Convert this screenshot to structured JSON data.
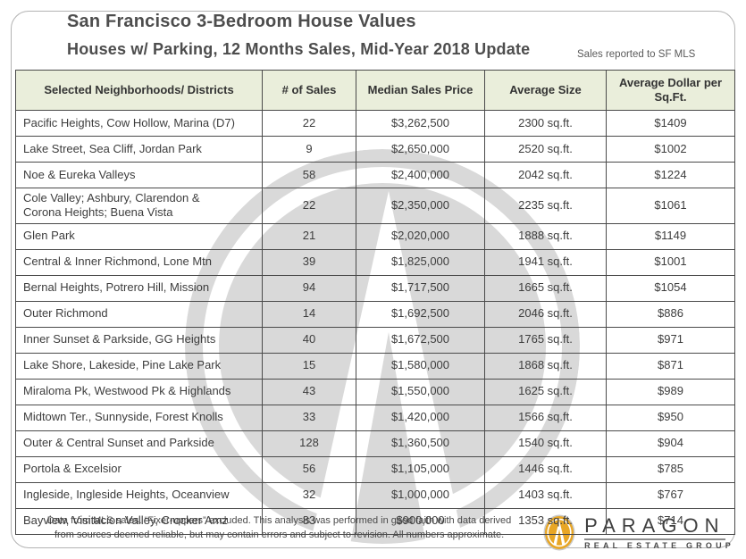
{
  "header": {
    "title": "San Francisco 3-Bedroom House Values",
    "subtitle": "Houses w/ Parking, 12 Months Sales, Mid-Year 2018 Update",
    "note": "Sales reported to SF MLS"
  },
  "chart_data": {
    "type": "table",
    "title": "San Francisco 3-Bedroom House Values",
    "subtitle": "Houses w/ Parking, 12 Months Sales, Mid-Year 2018 Update",
    "columns": [
      "Selected Neighborhoods/ Districts",
      "# of Sales",
      "Median Sales Price",
      "Average Size",
      "Average Dollar per Sq.Ft."
    ],
    "rows": [
      [
        "Pacific Heights, Cow Hollow, Marina (D7)",
        "22",
        "$3,262,500",
        "2300 sq.ft.",
        "$1409"
      ],
      [
        "Lake Street, Sea Cliff, Jordan Park",
        "9",
        "$2,650,000",
        "2520 sq.ft.",
        "$1002"
      ],
      [
        "Noe & Eureka Valleys",
        "58",
        "$2,400,000",
        "2042 sq.ft.",
        "$1224"
      ],
      [
        "Cole Valley; Ashbury, Clarendon &\nCorona Heights; Buena Vista",
        "22",
        "$2,350,000",
        "2235 sq.ft.",
        "$1061"
      ],
      [
        "Glen Park",
        "21",
        "$2,020,000",
        "1888 sq.ft.",
        "$1149"
      ],
      [
        "Central & Inner Richmond, Lone Mtn",
        "39",
        "$1,825,000",
        "1941 sq.ft.",
        "$1001"
      ],
      [
        "Bernal Heights, Potrero Hill, Mission",
        "94",
        "$1,717,500",
        "1665 sq.ft.",
        "$1054"
      ],
      [
        "Outer Richmond",
        "14",
        "$1,692,500",
        "2046 sq.ft.",
        "$886"
      ],
      [
        "Inner Sunset & Parkside, GG Heights",
        "40",
        "$1,672,500",
        "1765 sq.ft.",
        "$971"
      ],
      [
        "Lake Shore, Lakeside, Pine Lake Park",
        "15",
        "$1,580,000",
        "1868 sq.ft.",
        "$871"
      ],
      [
        "Miraloma Pk, Westwood Pk & Highlands",
        "43",
        "$1,550,000",
        "1625 sq.ft.",
        "$989"
      ],
      [
        "Midtown Ter., Sunnyside, Forest Knolls",
        "33",
        "$1,420,000",
        "1566 sq.ft.",
        "$950"
      ],
      [
        "Outer & Central Sunset and Parkside",
        "128",
        "$1,360,500",
        "1540 sq.ft.",
        "$904"
      ],
      [
        "Portola & Excelsior",
        "56",
        "$1,105,000",
        "1446 sq.ft.",
        "$785"
      ],
      [
        "Ingleside, Ingleside Heights, Oceanview",
        "32",
        "$1,000,000",
        "1403 sq.ft.",
        "$767"
      ],
      [
        "Bayview, Visitacion Valley, Crocker Amz",
        "83",
        "$900,000",
        "1353 sq.ft.",
        "$714"
      ]
    ]
  },
  "footer": {
    "disclaimer_line1": "Data from MLS sales. “Fixer-uppers” excluded. This analysis was performed in good faith with data derived",
    "disclaimer_line2": "from sources deemed reliable, but may contain errors and subject to revision. All numbers approximate.",
    "logo": {
      "brand": "PARAGON",
      "tagline": "REAL ESTATE GROUP"
    }
  },
  "colors": {
    "header_row_bg": "#EAEEDB",
    "table_border": "#4A4A4A",
    "watermark_gray": "#D9D9D9",
    "logo_gold": "#E8A625",
    "title_text": "#4D4D4D"
  }
}
